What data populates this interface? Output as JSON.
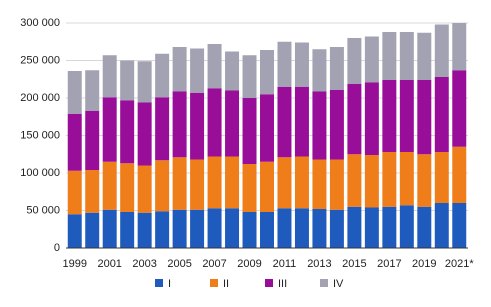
{
  "chart_data": {
    "type": "stacked-bar",
    "categories": [
      "1999",
      null,
      "2001",
      null,
      "2003",
      null,
      "2005",
      null,
      "2007",
      null,
      "2009",
      null,
      "2011",
      null,
      "2013",
      null,
      "2015",
      null,
      "2017",
      null,
      "2019",
      null,
      "2021*"
    ],
    "series": [
      {
        "name": "I",
        "color": "#1f5bbd",
        "values": [
          45000,
          47000,
          51000,
          48000,
          47000,
          49000,
          51000,
          51000,
          53000,
          53000,
          48000,
          48000,
          53000,
          53000,
          52000,
          51000,
          55000,
          54000,
          55000,
          57000,
          55000,
          60000,
          60000
        ]
      },
      {
        "name": "II",
        "color": "#ee7d1a",
        "values": [
          58000,
          57000,
          64000,
          65000,
          63000,
          68000,
          70000,
          67000,
          69000,
          69000,
          64000,
          67000,
          68000,
          69000,
          66000,
          67000,
          70000,
          70000,
          73000,
          71000,
          70000,
          68000,
          75000
        ]
      },
      {
        "name": "III",
        "color": "#980e99",
        "values": [
          76000,
          79000,
          86000,
          84000,
          84000,
          84000,
          88000,
          89000,
          91000,
          88000,
          88000,
          90000,
          94000,
          93000,
          91000,
          93000,
          94000,
          97000,
          96000,
          96000,
          99000,
          100000,
          102000
        ]
      },
      {
        "name": "IV",
        "color": "#a2a2b2",
        "values": [
          57000,
          54000,
          56000,
          53000,
          55000,
          58000,
          59000,
          59000,
          59000,
          52000,
          57000,
          59000,
          60000,
          59000,
          56000,
          57000,
          61000,
          61000,
          64000,
          64000,
          63000,
          70000,
          63000
        ]
      }
    ],
    "ylim": [
      0,
      300000
    ],
    "yticks": [
      0,
      {
        "value": 50000,
        "label": "50 000"
      },
      {
        "value": 100000,
        "label": "100 000"
      },
      {
        "value": 150000,
        "label": "150 000"
      },
      {
        "value": 200000,
        "label": "200 000"
      },
      {
        "value": 250000,
        "label": "250 000"
      },
      {
        "value": 300000,
        "label": "300 000"
      }
    ],
    "grid": true,
    "legend": "bottom"
  }
}
